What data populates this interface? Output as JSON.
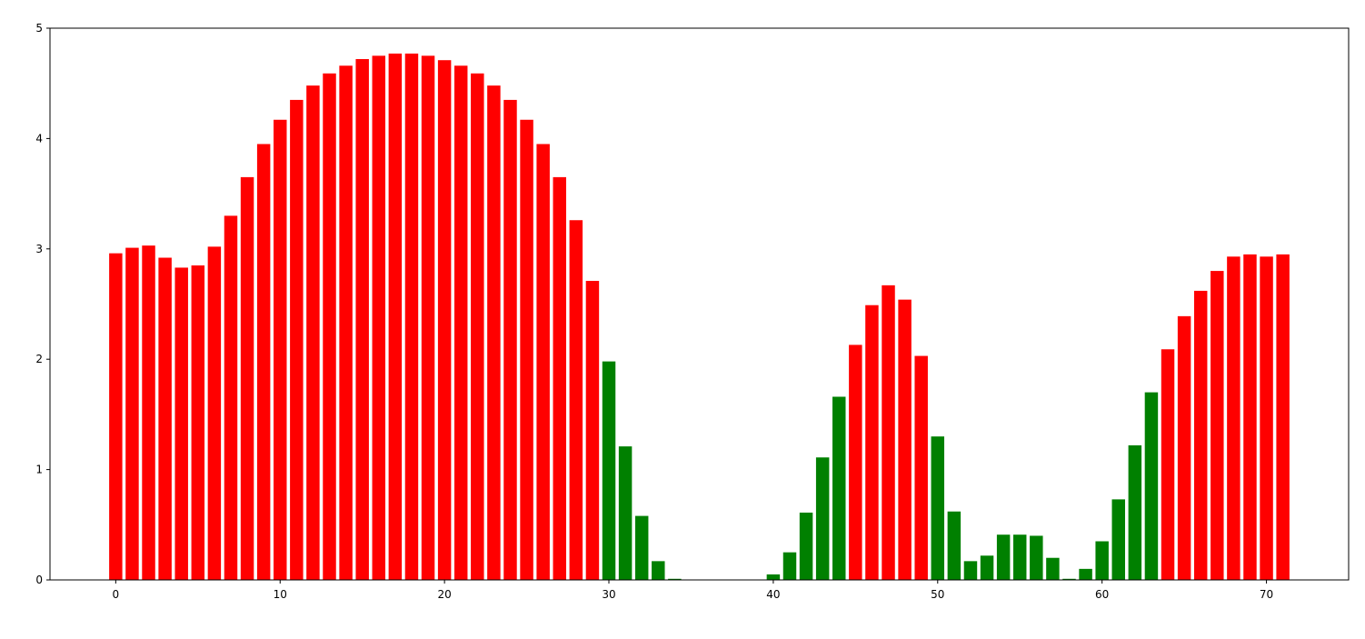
{
  "chart_data": {
    "type": "bar",
    "title": "",
    "xlabel": "",
    "ylabel": "",
    "x": [
      0,
      1,
      2,
      3,
      4,
      5,
      6,
      7,
      8,
      9,
      10,
      11,
      12,
      13,
      14,
      15,
      16,
      17,
      18,
      19,
      20,
      21,
      22,
      23,
      24,
      25,
      26,
      27,
      28,
      29,
      30,
      31,
      32,
      33,
      34,
      35,
      36,
      37,
      38,
      39,
      40,
      41,
      42,
      43,
      44,
      45,
      46,
      47,
      48,
      49,
      50,
      51,
      52,
      53,
      54,
      55,
      56,
      57,
      58,
      59,
      60,
      61,
      62,
      63,
      64,
      65,
      66,
      67,
      68,
      69,
      70,
      71
    ],
    "values": [
      2.96,
      3.01,
      3.03,
      2.92,
      2.83,
      2.85,
      3.02,
      3.3,
      3.65,
      3.95,
      4.17,
      4.35,
      4.48,
      4.59,
      4.66,
      4.72,
      4.75,
      4.77,
      4.77,
      4.75,
      4.71,
      4.66,
      4.59,
      4.48,
      4.35,
      4.17,
      3.95,
      3.65,
      3.26,
      2.71,
      1.98,
      1.21,
      0.58,
      0.17,
      0.01,
      0,
      0,
      0,
      0,
      0,
      0.05,
      0.25,
      0.61,
      1.11,
      1.66,
      2.13,
      2.49,
      2.67,
      2.54,
      2.03,
      1.3,
      0.62,
      0.17,
      0.22,
      0.41,
      0.41,
      0.4,
      0.2,
      0.01,
      0.1,
      0.35,
      0.73,
      1.22,
      1.7,
      2.09,
      2.39,
      2.62,
      2.8,
      2.93,
      2.95,
      2.93,
      2.95
    ],
    "bar_colors": [
      "red",
      "red",
      "red",
      "red",
      "red",
      "red",
      "red",
      "red",
      "red",
      "red",
      "red",
      "red",
      "red",
      "red",
      "red",
      "red",
      "red",
      "red",
      "red",
      "red",
      "red",
      "red",
      "red",
      "red",
      "red",
      "red",
      "red",
      "red",
      "red",
      "red",
      "green",
      "green",
      "green",
      "green",
      "green",
      "green",
      "green",
      "green",
      "green",
      "green",
      "green",
      "green",
      "green",
      "green",
      "green",
      "red",
      "red",
      "red",
      "red",
      "red",
      "green",
      "green",
      "green",
      "green",
      "green",
      "green",
      "green",
      "green",
      "green",
      "green",
      "green",
      "green",
      "green",
      "green",
      "red",
      "red",
      "red",
      "red",
      "red",
      "red",
      "red",
      "red"
    ],
    "colors": {
      "red": "#ff0000",
      "green": "#008000"
    },
    "xlim": [
      -4,
      75
    ],
    "ylim": [
      0,
      5
    ],
    "xticks": [
      0,
      10,
      20,
      30,
      40,
      50,
      60,
      70
    ],
    "yticks": [
      0,
      1,
      2,
      3,
      4,
      5
    ],
    "bar_width": 0.8,
    "grid": false,
    "legend": "none"
  }
}
